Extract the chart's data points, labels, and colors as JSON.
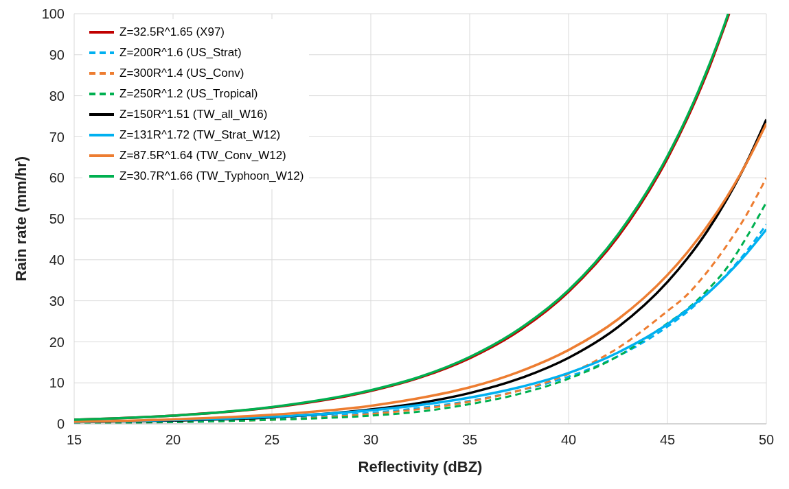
{
  "chart_data": {
    "type": "line",
    "xlabel": "Reflectivity (dBZ)",
    "ylabel": "Rain rate (mm/hr)",
    "x": [
      15,
      20,
      25,
      30,
      32.5,
      35,
      37.5,
      40,
      42.5,
      45,
      46,
      47,
      48,
      49,
      50
    ],
    "xlim": [
      15,
      50
    ],
    "xticks": [
      15,
      20,
      25,
      30,
      35,
      40,
      45,
      50
    ],
    "ylim": [
      0,
      100
    ],
    "yticks": [
      0,
      10,
      20,
      30,
      40,
      50,
      60,
      70,
      80,
      90,
      100
    ],
    "grid": true,
    "legend": "top left",
    "marker": "none",
    "series": [
      {
        "name": "Z=32.5R^1.65 (X97)",
        "color": "#c00000",
        "line_style": "solid",
        "x": [
          15,
          20,
          25,
          30,
          32.5,
          35,
          37.5,
          40,
          42.5,
          45,
          46,
          47,
          48,
          48.12
        ],
        "values": [
          1.0,
          2.0,
          4.0,
          8.0,
          11.3,
          16.0,
          22.7,
          32.2,
          45.6,
          64.7,
          74.4,
          85.5,
          98.4,
          100
        ]
      },
      {
        "name": "Z=200R^1.6 (US_Strat)",
        "color": "#00b0f0",
        "line_style": "dashed",
        "values": [
          0.3,
          0.7,
          1.3,
          2.7,
          3.9,
          5.6,
          8.1,
          11.5,
          16.5,
          23.7,
          27.3,
          31.6,
          36.5,
          42.1,
          48.6
        ]
      },
      {
        "name": "Z=300R^1.4 (US_Conv)",
        "color": "#ed7d31",
        "line_style": "dashed",
        "values": [
          0.2,
          0.5,
          1.0,
          2.4,
          3.6,
          5.4,
          8.1,
          12.2,
          18.5,
          27.5,
          31.5,
          37,
          43.5,
          51,
          60
        ]
      },
      {
        "name": "Z=250R^1.2 (US_Tropical)",
        "color": "#00b050",
        "line_style": "dashed",
        "values": [
          0.1,
          0.4,
          1.0,
          2.0,
          3.0,
          4.8,
          7.3,
          11,
          16.5,
          24.5,
          28,
          32.5,
          38,
          45.5,
          54
        ]
      },
      {
        "name": "Z=150R^1.51 (TW_all_W16)",
        "color": "#000000",
        "line_style": "solid",
        "values": [
          0.4,
          0.8,
          1.6,
          3.5,
          5.1,
          7.5,
          11.0,
          16.1,
          23.6,
          34.6,
          40.3,
          46.9,
          54.7,
          63.7,
          74.2
        ]
      },
      {
        "name": "Z=131R^1.72 (TW_Strat_W12)",
        "color": "#00b0f0",
        "line_style": "solid",
        "values": [
          0.4,
          0.9,
          1.7,
          3.3,
          4.6,
          6.4,
          8.9,
          12.4,
          17.4,
          24.3,
          27.8,
          31.7,
          36.3,
          41.5,
          47.4
        ]
      },
      {
        "name": "Z=87.5R^1.64 (TW_Conv_W12)",
        "color": "#ed7d31",
        "line_style": "solid",
        "values": [
          0.5,
          1.1,
          2.2,
          4.4,
          6.3,
          8.9,
          12.7,
          18.0,
          25.5,
          36.3,
          41.8,
          48.1,
          55.3,
          63.6,
          73.2
        ]
      },
      {
        "name": "Z=30.7R^1.66 (TW_Typhoon_W12)",
        "color": "#00b050",
        "line_style": "solid",
        "x": [
          15,
          20,
          25,
          30,
          32.5,
          35,
          37.5,
          40,
          42.5,
          45,
          46,
          47,
          48,
          48.07
        ],
        "values": [
          1.0,
          2.0,
          4.1,
          8.2,
          11.5,
          16.3,
          23.1,
          32.6,
          46.2,
          65.3,
          75.0,
          86.2,
          99.0,
          100
        ]
      }
    ]
  }
}
